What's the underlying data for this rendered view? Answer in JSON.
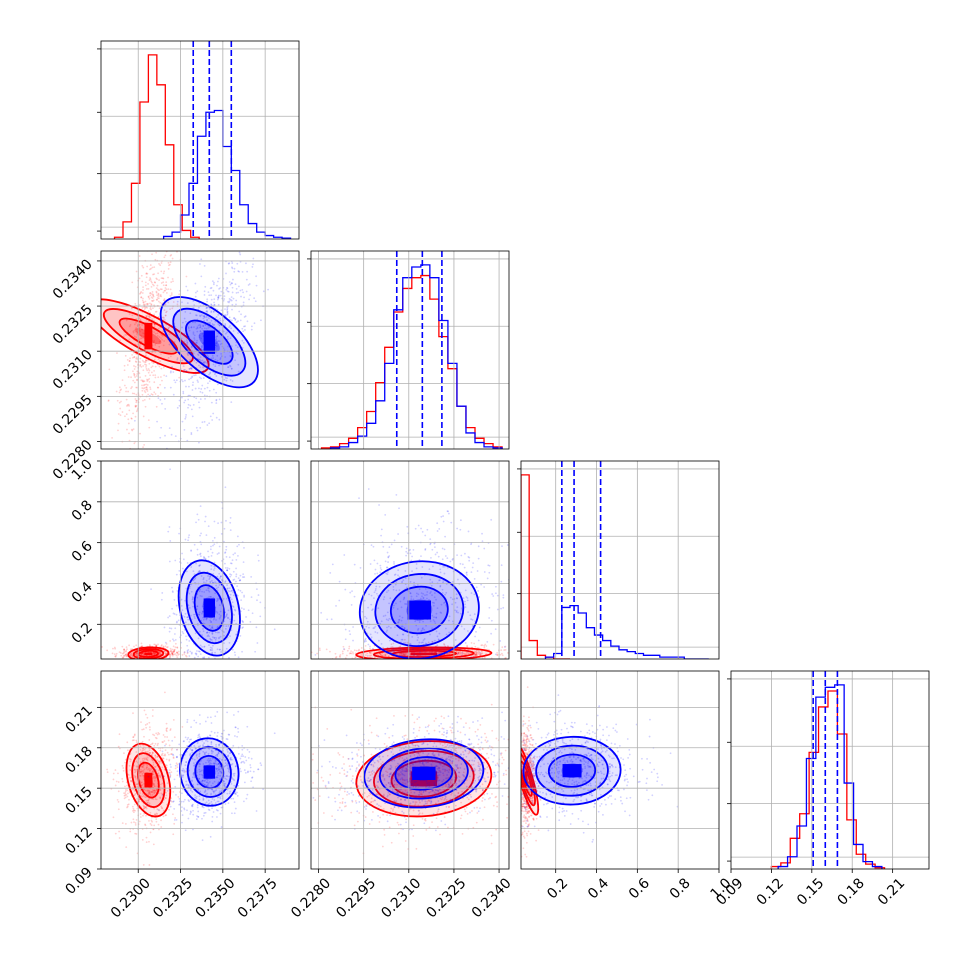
{
  "colors": {
    "series_a": "#ff0000",
    "series_b": "#0000ff",
    "grid": "#b0b0b0",
    "frame": "#000000"
  },
  "chart_data": {
    "type": "corner",
    "grid": true,
    "params": [
      {
        "range": [
          0.2278,
          0.2395
        ],
        "ticks": [
          "0.2300",
          "0.2325",
          "0.2350",
          "0.2375"
        ]
      },
      {
        "range": [
          0.22775,
          0.23433
        ],
        "ticks": [
          "0.2280",
          "0.2295",
          "0.2310",
          "0.2325",
          "0.2340"
        ]
      },
      {
        "range": [
          0.03,
          1.0
        ],
        "ticks": [
          "0.2",
          "0.4",
          "0.6",
          "0.8",
          "1.0"
        ]
      },
      {
        "range": [
          0.09,
          0.237
        ],
        "ticks": [
          "0.09",
          "0.12",
          "0.15",
          "0.18",
          "0.21"
        ]
      }
    ],
    "series": [
      {
        "color": "red",
        "histograms": [
          {
            "bins": [
              0.2286,
              0.2291,
              0.2296,
              0.2301,
              0.2306,
              0.2311,
              0.2316,
              0.2321,
              0.2326,
              0.2331
            ],
            "counts": [
              2,
              20,
              65,
              160,
              215,
              180,
              110,
              40,
              10,
              2
            ]
          },
          {
            "bins": [
              0.2281,
              0.2284,
              0.2287,
              0.229,
              0.2293,
              0.2296,
              0.2299,
              0.2302,
              0.2305,
              0.2308,
              0.2311,
              0.2314,
              0.2317,
              0.232,
              0.2323,
              0.2326,
              0.2329,
              0.2332,
              0.2335,
              0.2338
            ],
            "counts": [
              1,
              2,
              5,
              10,
              20,
              35,
              62,
              95,
              128,
              150,
              160,
              162,
              140,
              105,
              75,
              40,
              20,
              10,
              5,
              2
            ]
          },
          {
            "bins": [
              0.03,
              0.07,
              0.11,
              0.15,
              0.19,
              0.23
            ],
            "counts": [
              100,
              10,
              2,
              1,
              0,
              0
            ]
          },
          {
            "bins": [
              0.12,
              0.127,
              0.134,
              0.141,
              0.148,
              0.155,
              0.162,
              0.169,
              0.176,
              0.183,
              0.19,
              0.197
            ],
            "counts": [
              2,
              5,
              25,
              45,
              95,
              132,
              145,
              110,
              40,
              12,
              4,
              1
            ]
          }
        ],
        "contour_centers": [
          {
            "pair": [
              0,
              1
            ],
            "center": [
              0.2306,
              0.2315
            ]
          },
          {
            "pair": [
              0,
              2
            ],
            "center": [
              0.2306,
              0.055
            ]
          },
          {
            "pair": [
              1,
              2
            ],
            "center": [
              0.2315,
              0.055
            ]
          },
          {
            "pair": [
              0,
              3
            ],
            "center": [
              0.2306,
              0.156
            ]
          },
          {
            "pair": [
              1,
              3
            ],
            "center": [
              0.2315,
              0.157
            ]
          },
          {
            "pair": [
              2,
              3
            ],
            "center": [
              0.055,
              0.157
            ]
          }
        ]
      },
      {
        "color": "blue",
        "quantile_lines": [
          [
            0.23325,
            0.2342,
            0.2355
          ],
          [
            0.2306,
            0.23145,
            0.2321
          ],
          [
            0.23,
            0.29,
            0.42
          ],
          [
            0.151,
            0.16,
            0.169
          ]
        ],
        "histograms": [
          {
            "bins": [
              0.2315,
              0.232,
              0.2325,
              0.233,
              0.2335,
              0.234,
              0.2345,
              0.235,
              0.2355,
              0.236,
              0.2365,
              0.237,
              0.2375,
              0.238,
              0.2385
            ],
            "counts": [
              3,
              8,
              28,
              65,
              120,
              148,
              150,
              108,
              80,
              40,
              18,
              8,
              4,
              2,
              1
            ]
          },
          {
            "bins": [
              0.2284,
              0.2287,
              0.229,
              0.2293,
              0.2296,
              0.2299,
              0.2302,
              0.2305,
              0.2308,
              0.2311,
              0.2314,
              0.2317,
              0.232,
              0.2323,
              0.2326,
              0.2329,
              0.2332,
              0.2335,
              0.2338
            ],
            "counts": [
              1,
              2,
              6,
              12,
              24,
              45,
              80,
              130,
              160,
              170,
              172,
              160,
              120,
              80,
              40,
              15,
              6,
              2,
              1
            ]
          },
          {
            "bins": [
              0.15,
              0.19,
              0.23,
              0.27,
              0.31,
              0.35,
              0.39,
              0.43,
              0.47,
              0.51,
              0.55,
              0.59,
              0.63,
              0.67,
              0.71,
              0.75,
              0.79,
              0.83,
              0.87,
              0.91,
              0.95
            ],
            "counts": [
              1,
              3,
              28,
              29,
              25,
              17,
              13,
              10,
              7,
              5,
              4,
              3,
              2,
              2,
              1,
              1,
              1,
              0,
              0,
              0
            ]
          },
          {
            "bins": [
              0.125,
              0.132,
              0.139,
              0.146,
              0.153,
              0.16,
              0.167,
              0.174,
              0.181,
              0.188,
              0.195
            ],
            "counts": [
              2,
              10,
              35,
              90,
              140,
              148,
              150,
              70,
              20,
              6,
              2
            ]
          }
        ],
        "contour_centers": [
          {
            "pair": [
              0,
              1
            ],
            "center": [
              0.2342,
              0.2313
            ]
          },
          {
            "pair": [
              0,
              2
            ],
            "center": [
              0.2342,
              0.28
            ]
          },
          {
            "pair": [
              1,
              2
            ],
            "center": [
              0.23135,
              0.27
            ]
          },
          {
            "pair": [
              0,
              3
            ],
            "center": [
              0.2342,
              0.162
            ]
          },
          {
            "pair": [
              1,
              3
            ],
            "center": [
              0.2315,
              0.161
            ]
          },
          {
            "pair": [
              2,
              3
            ],
            "center": [
              0.28,
              0.163
            ]
          }
        ]
      }
    ]
  }
}
